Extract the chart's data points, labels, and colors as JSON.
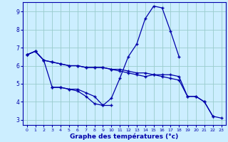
{
  "xlabel": "Graphe des températures (°c)",
  "bg_color": "#cceeff",
  "grid_color": "#99cccc",
  "line_color": "#0000aa",
  "xlim": [
    -0.5,
    23.5
  ],
  "ylim": [
    2.7,
    9.5
  ],
  "yticks": [
    3,
    4,
    5,
    6,
    7,
    8,
    9
  ],
  "xticks": [
    0,
    1,
    2,
    3,
    4,
    5,
    6,
    7,
    8,
    9,
    10,
    11,
    12,
    13,
    14,
    15,
    16,
    17,
    18,
    19,
    20,
    21,
    22,
    23
  ],
  "series1_x": [
    0,
    1,
    2,
    3,
    4,
    5,
    6,
    7,
    8,
    9,
    10,
    11,
    12,
    13,
    14,
    15,
    16,
    17,
    18,
    19,
    20,
    21,
    22
  ],
  "series1_y": [
    6.6,
    6.8,
    6.3,
    6.2,
    6.1,
    6.0,
    6.0,
    5.9,
    5.9,
    5.9,
    5.8,
    5.8,
    5.7,
    5.6,
    5.6,
    5.5,
    5.5,
    5.5,
    5.4,
    4.3,
    4.3,
    4.0,
    3.2
  ],
  "series2_x": [
    0,
    1,
    2,
    3,
    4,
    5,
    6,
    7,
    8,
    9,
    10,
    11,
    12,
    13,
    14,
    15,
    16,
    17,
    18
  ],
  "series2_y": [
    6.6,
    6.8,
    6.3,
    4.8,
    4.8,
    4.7,
    4.6,
    4.3,
    3.9,
    3.8,
    4.2,
    5.3,
    6.5,
    7.2,
    8.6,
    9.3,
    9.2,
    7.9,
    6.5
  ],
  "series3_x": [
    3,
    4,
    5,
    6,
    7,
    8,
    9,
    10
  ],
  "series3_y": [
    4.8,
    4.8,
    4.7,
    4.7,
    4.5,
    4.3,
    3.8,
    3.8
  ],
  "series4_x": [
    0,
    1,
    2,
    3,
    4,
    5,
    6,
    7,
    8,
    9,
    10,
    11,
    12,
    13,
    14,
    15,
    16,
    17,
    18,
    19,
    20,
    21,
    22,
    23
  ],
  "series4_y": [
    6.6,
    6.8,
    6.3,
    6.2,
    6.1,
    6.0,
    6.0,
    5.9,
    5.9,
    5.9,
    5.8,
    5.7,
    5.6,
    5.5,
    5.4,
    5.5,
    5.4,
    5.3,
    5.2,
    4.3,
    4.3,
    4.0,
    3.2,
    3.1
  ]
}
